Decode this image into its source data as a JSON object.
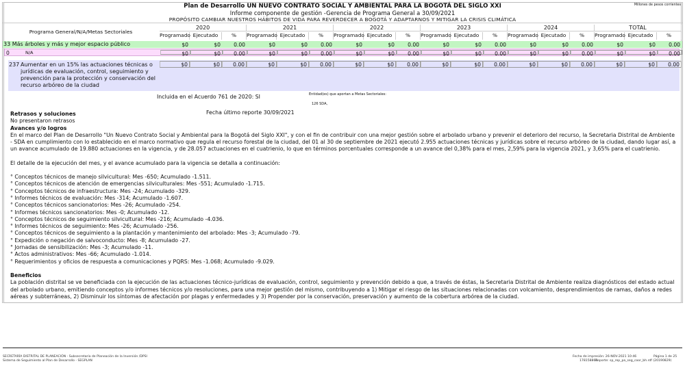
{
  "header": {
    "title": "Plan de Desarrollo UN NUEVO CONTRATO SOCIAL Y AMBIENTAL PARA LA BOGOTÁ DEL SIGLO XXI",
    "subtitle": "Informe componente de gestión -Gerencia de Programa General a 30/09/2021",
    "purpose": "PROPÓSITO CAMBIAR NUESTROS HÁBITOS DE VIDA PARA REVERDECER A BOGOTÁ Y ADAPTARNOS Y MITIGAR LA CRISIS CLIMÁTICA",
    "units": "Millones de pesos corrientes"
  },
  "table": {
    "label_header": "Programa General/N/A/Metas Sectoriales",
    "years": [
      "2020",
      "2021",
      "2022",
      "2023",
      "2024",
      "TOTAL"
    ],
    "subheaders": [
      "Programado",
      "Ejecutado",
      "%"
    ],
    "rows": [
      {
        "label": "33  Más árboles y más y mejor espacio público",
        "color": "#c2f5c2",
        "values": [
          "$0",
          "$0",
          "0.00",
          "$0",
          "$0",
          "0.00",
          "$0",
          "$0",
          "0.00",
          "$0",
          "$0",
          "0.00",
          "$0",
          "$0",
          "0.00",
          "$0",
          "$0",
          "0.00"
        ]
      },
      {
        "code": "0",
        "label": "N/A",
        "color": "#fcdcfc",
        "values": [
          "$0",
          "$0",
          "0.00",
          "$0",
          "$0",
          "0.00",
          "$0",
          "$0",
          "0.00",
          "$0",
          "$0",
          "0.00",
          "$0",
          "$0",
          "0.00",
          "$0",
          "$0",
          "0.00"
        ]
      },
      {
        "code": "237",
        "label": "Aumentar en un 15%  las actuaciones técnicas o jurídicas de evaluación, control, seguimiento y prevención para la protección y conservación del recurso arbóreo de la ciudad",
        "color": "#e2e2fc",
        "values": [
          "$0",
          "$0",
          "0.00",
          "$0",
          "$0",
          "0.00",
          "$0",
          "$0",
          "0.00",
          "$0",
          "$0",
          "0.00",
          "$0",
          "$0",
          "0.00",
          "$0",
          "$0",
          "0.00"
        ]
      }
    ]
  },
  "meta": {
    "acuerdo": "Incluida en el Acuerdo 761 de 2020: SI",
    "entidades_label": "Entidad(es) que aportan a Metas Sectoriales:",
    "entidad": "126 SDA,",
    "fecha_reporte": "Fecha último reporte 30/09/2021"
  },
  "retrasos": {
    "title": "Retrasos y soluciones",
    "text": "No presentaron retrasos"
  },
  "avances": {
    "title": "Avances y/o logros",
    "paragraph": "En el marco del Plan de Desarrollo \"Un Nuevo Contrato Social y Ambiental para la Bogotá del Siglo XXI\", y con el fin de contribuir con una mejor gestión sobre el arbolado urbano y prevenir el deterioro del recurso, la Secretaria Distrital de Ambiente - SDA en cumplimiento con lo establecido en el marco normativo que regula el recurso forestal de la ciudad, del 01 al 30 de septiembre de 2021 ejecutó 2.955 actuaciones técnicas y jurídicas sobre el recurso arbóreo de la ciudad, dando lugar así, a un avance acumulado de 19.880 actuaciones en la vigencia, y de 28.057 actuaciones en el cuatrienio, lo que en términos porcentuales corresponde a un avance del 0,38%  para el mes, 2,59%  para la vigencia 2021, y 3,65%  para el cuatrienio.",
    "intro": "El detalle de la ejecución del mes, y el avance acumulado para la vigencia se detalla a continuación:",
    "items": [
      "° Conceptos técnicos de manejo silvicultural:  Mes -650; Acumulado -1.511.",
      "° Conceptos técnicos de atención de emergencias silviculturales:  Mes -551; Acumulado -1.715.",
      "° Conceptos técnicos de infraestructura:  Mes -24; Acumulado -329.",
      "° Informes técnicos de evaluación:  Mes -314; Acumulado -1.607.",
      "° Conceptos técnicos sancionatorios:  Mes -26; Acumulado -254.",
      "° Informes técnicos sancionatorios:  Mes -0; Acumulado -12.",
      "° Conceptos técnicos de seguimiento silvicultural:  Mes -216; Acumulado -4.036.",
      "° Informes técnicos de seguimiento:  Mes -26; Acumulado -256.",
      "° Conceptos técnicos de seguimiento a la plantación y mantenimiento del arbolado:  Mes -3; Acumulado -79.",
      "° Expedición o negación de salvoconducto:  Mes -8; Acumulado -27.",
      "° Jornadas de sensibilización:  Mes -3; Acumulado -11.",
      "° Actos administrativos:  Mes -66; Acumulado -1.014.",
      "° Requerimientos y oficios de respuesta a comunicaciones y PQRS:  Mes -1.068; Acumulado -9.029."
    ]
  },
  "beneficios": {
    "title": "Beneficios",
    "text": "La población distrital se ve beneficiada con la ejecución de las actuaciones técnico-jurídicas de evaluación, control, seguimiento y prevención debido a que, a través de éstas, la Secretaria Distrital de Ambiente realiza diagnósticos del estado actual del arbolado urbano, emitiendo conceptos y/o informes técnicos y/o resoluciones, para una mejor gestión del mismo, contribuyendo a 1) Mitigar el riesgo de las situaciones relacionadas con volcamiento, desprendimientos de ramas,   daños a redes aéreas y subterráneas, 2) Disminuir los síntomas de afectación por plagas y enfermedades y 3) Propender por la conservación, preservación y aumento de la cobertura arbórea de la ciudad."
  },
  "footer": {
    "left1": "SECRETARÍA DISTRITAL DE PLANEACIÓN - Subsecretaría de Planeación de la Inversión /DPSI",
    "left2": "Sistema de Seguimiento al Plan de Desarrollo - SEGPLAN",
    "print_date": "Fecha de impresión: 26-NOV-2021 10:46",
    "page": "Página  1 de 25",
    "id": "178158864",
    "report": "Reporte: sp_rep_pa_seg_coor_bh.rdf (20190829)"
  }
}
